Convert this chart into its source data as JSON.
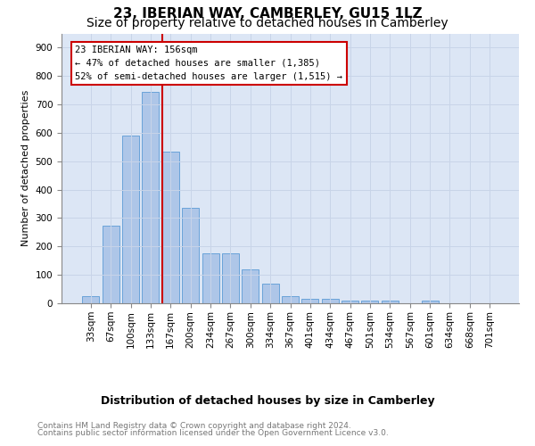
{
  "title": "23, IBERIAN WAY, CAMBERLEY, GU15 1LZ",
  "subtitle": "Size of property relative to detached houses in Camberley",
  "xlabel": "Distribution of detached houses by size in Camberley",
  "ylabel": "Number of detached properties",
  "bar_labels": [
    "33sqm",
    "67sqm",
    "100sqm",
    "133sqm",
    "167sqm",
    "200sqm",
    "234sqm",
    "267sqm",
    "300sqm",
    "334sqm",
    "367sqm",
    "401sqm",
    "434sqm",
    "467sqm",
    "501sqm",
    "534sqm",
    "567sqm",
    "601sqm",
    "634sqm",
    "668sqm",
    "701sqm"
  ],
  "bar_values": [
    25,
    273,
    590,
    743,
    535,
    335,
    175,
    175,
    120,
    68,
    25,
    15,
    15,
    10,
    9,
    9,
    0,
    10,
    0,
    0,
    0
  ],
  "bar_color": "#aec6e8",
  "bar_edgecolor": "#5b9bd5",
  "property_line_label": "23 IBERIAN WAY: 156sqm",
  "annotation_line1": "← 47% of detached houses are smaller (1,385)",
  "annotation_line2": "52% of semi-detached houses are larger (1,515) →",
  "annotation_box_color": "#ffffff",
  "annotation_box_edgecolor": "#cc0000",
  "vline_color": "#cc0000",
  "ylim": [
    0,
    950
  ],
  "yticks": [
    0,
    100,
    200,
    300,
    400,
    500,
    600,
    700,
    800,
    900
  ],
  "grid_color": "#c8d4e8",
  "background_color": "#dce6f5",
  "footer_line1": "Contains HM Land Registry data © Crown copyright and database right 2024.",
  "footer_line2": "Contains public sector information licensed under the Open Government Licence v3.0.",
  "title_fontsize": 11,
  "subtitle_fontsize": 10,
  "xlabel_fontsize": 9,
  "ylabel_fontsize": 8,
  "tick_fontsize": 7.5,
  "annotation_fontsize": 7.5,
  "footer_fontsize": 6.5
}
